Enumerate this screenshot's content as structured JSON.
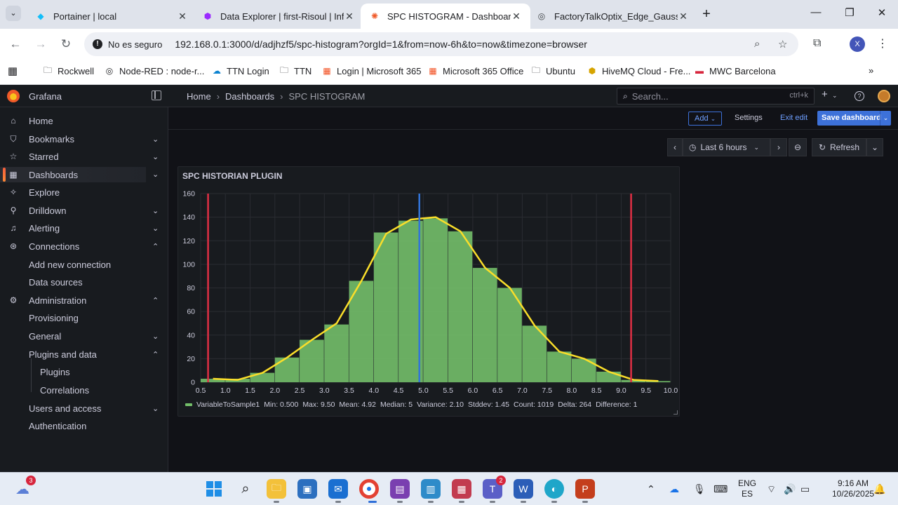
{
  "browser": {
    "tabs": [
      {
        "title": "Portainer | local",
        "active": false
      },
      {
        "title": "Data Explorer | first-Risoul | Influ",
        "active": false
      },
      {
        "title": "SPC HISTOGRAM - Dashboards",
        "active": true
      },
      {
        "title": "FactoryTalkOptix_Edge_Gaussian",
        "active": false
      }
    ],
    "security_label": "No es seguro",
    "url": "192.168.0.1:3000/d/adjhzf5/spc-histogram?orgId=1&from=now-6h&to=now&timezone=browser",
    "profile_initial": "X",
    "bookmarks": [
      "Rockwell",
      "Node-RED : node-r...",
      "TTN Login",
      "TTN",
      "Login | Microsoft 365",
      "Microsoft 365 Office",
      "Ubuntu",
      "HiveMQ Cloud - Fre...",
      "MWC Barcelona"
    ]
  },
  "grafana": {
    "brand": "Grafana",
    "breadcrumbs": [
      "Home",
      "Dashboards",
      "SPC HISTOGRAM"
    ],
    "search_placeholder": "Search...",
    "search_shortcut": "ctrl+k",
    "sidebar": [
      {
        "label": "Home",
        "icon": "home-icon",
        "level": 0,
        "chevron": ""
      },
      {
        "label": "Bookmarks",
        "icon": "bookmark-icon",
        "level": 0,
        "chevron": "⌄"
      },
      {
        "label": "Starred",
        "icon": "star-icon",
        "level": 0,
        "chevron": "⌄"
      },
      {
        "label": "Dashboards",
        "icon": "dashboards-icon",
        "level": 0,
        "chevron": "⌄",
        "active": true
      },
      {
        "label": "Explore",
        "icon": "explore-icon",
        "level": 0,
        "chevron": ""
      },
      {
        "label": "Drilldown",
        "icon": "drilldown-icon",
        "level": 0,
        "chevron": "⌄"
      },
      {
        "label": "Alerting",
        "icon": "bell-icon",
        "level": 0,
        "chevron": "⌄"
      },
      {
        "label": "Connections",
        "icon": "connections-icon",
        "level": 0,
        "chevron": "⌃"
      },
      {
        "label": "Add new connection",
        "icon": "",
        "level": 1,
        "chevron": ""
      },
      {
        "label": "Data sources",
        "icon": "",
        "level": 1,
        "chevron": ""
      },
      {
        "label": "Administration",
        "icon": "gear-icon",
        "level": 0,
        "chevron": "⌃"
      },
      {
        "label": "Provisioning",
        "icon": "",
        "level": 1,
        "chevron": ""
      },
      {
        "label": "General",
        "icon": "",
        "level": 1,
        "chevron": "⌄"
      },
      {
        "label": "Plugins and data",
        "icon": "",
        "level": 1,
        "chevron": "⌃"
      },
      {
        "label": "Plugins",
        "icon": "",
        "level": 2,
        "chevron": ""
      },
      {
        "label": "Correlations",
        "icon": "",
        "level": 2,
        "chevron": ""
      },
      {
        "label": "Users and access",
        "icon": "",
        "level": 1,
        "chevron": "⌄"
      },
      {
        "label": "Authentication",
        "icon": "",
        "level": 1,
        "chevron": ""
      }
    ],
    "toolbar": {
      "add_label": "Add",
      "settings_label": "Settings",
      "exit_edit_label": "Exit edit",
      "save_label": "Save dashboard"
    },
    "time_range": "Last 6 hours",
    "refresh_label": "Refresh",
    "panel": {
      "title": "SPC HISTORIAN PLUGIN",
      "legend": {
        "series": "VariableToSample1",
        "stats": [
          "Min: 0.500",
          "Max: 9.50",
          "Mean: 4.92",
          "Median: 5",
          "Variance: 2.10",
          "Stddev: 1.45",
          "Count: 1019",
          "Delta: 264",
          "Difference: 1"
        ]
      }
    }
  },
  "chart_data": {
    "type": "bar",
    "x_ticks": [
      "0.5",
      "1.0",
      "1.5",
      "2.0",
      "2.5",
      "3.0",
      "3.5",
      "4.0",
      "4.5",
      "5.0",
      "5.5",
      "6.0",
      "6.5",
      "7.0",
      "7.5",
      "8.0",
      "8.5",
      "9.0",
      "9.5",
      "10.0"
    ],
    "y_ticks": [
      "0",
      "20",
      "40",
      "60",
      "80",
      "100",
      "120",
      "140",
      "160"
    ],
    "xlim": [
      0.5,
      10.0
    ],
    "ylim": [
      0,
      160
    ],
    "bins": [
      {
        "from": 0.5,
        "to": 1.0,
        "count": 3
      },
      {
        "from": 1.0,
        "to": 1.5,
        "count": 3
      },
      {
        "from": 1.5,
        "to": 2.0,
        "count": 8
      },
      {
        "from": 2.0,
        "to": 2.5,
        "count": 21
      },
      {
        "from": 2.5,
        "to": 3.0,
        "count": 36
      },
      {
        "from": 3.0,
        "to": 3.5,
        "count": 49
      },
      {
        "from": 3.5,
        "to": 4.0,
        "count": 86
      },
      {
        "from": 4.0,
        "to": 4.5,
        "count": 127
      },
      {
        "from": 4.5,
        "to": 5.0,
        "count": 137
      },
      {
        "from": 5.0,
        "to": 5.5,
        "count": 139
      },
      {
        "from": 5.5,
        "to": 6.0,
        "count": 128
      },
      {
        "from": 6.0,
        "to": 6.5,
        "count": 97
      },
      {
        "from": 6.5,
        "to": 7.0,
        "count": 80
      },
      {
        "from": 7.0,
        "to": 7.5,
        "count": 48
      },
      {
        "from": 7.5,
        "to": 8.0,
        "count": 26
      },
      {
        "from": 8.0,
        "to": 8.5,
        "count": 20
      },
      {
        "from": 8.5,
        "to": 9.0,
        "count": 9
      },
      {
        "from": 9.0,
        "to": 9.5,
        "count": 2
      },
      {
        "from": 9.5,
        "to": 10.0,
        "count": 1
      }
    ],
    "curve": [
      [
        0.75,
        3
      ],
      [
        1.25,
        2
      ],
      [
        1.75,
        8
      ],
      [
        2.25,
        21
      ],
      [
        2.75,
        36
      ],
      [
        3.25,
        50
      ],
      [
        3.75,
        86
      ],
      [
        4.25,
        126
      ],
      [
        4.75,
        138
      ],
      [
        5.0,
        139
      ],
      [
        5.25,
        140
      ],
      [
        5.75,
        128
      ],
      [
        6.25,
        97
      ],
      [
        6.75,
        80
      ],
      [
        7.25,
        48
      ],
      [
        7.75,
        26
      ],
      [
        8.25,
        20
      ],
      [
        8.75,
        9
      ],
      [
        9.25,
        2
      ],
      [
        9.75,
        1
      ]
    ],
    "vertical_lines": [
      {
        "x": 0.65,
        "color": "#e02f44"
      },
      {
        "x": 4.92,
        "color": "#3274d9"
      },
      {
        "x": 9.2,
        "color": "#e02f44"
      }
    ],
    "bar_color": "#73bf69",
    "curve_color": "#fade2a",
    "grid": true
  },
  "taskbar": {
    "weather_badge": "3",
    "teams_badge": "2",
    "lang_top": "ENG",
    "lang_bottom": "ES",
    "time": "9:16 AM",
    "date": "10/26/2025"
  }
}
